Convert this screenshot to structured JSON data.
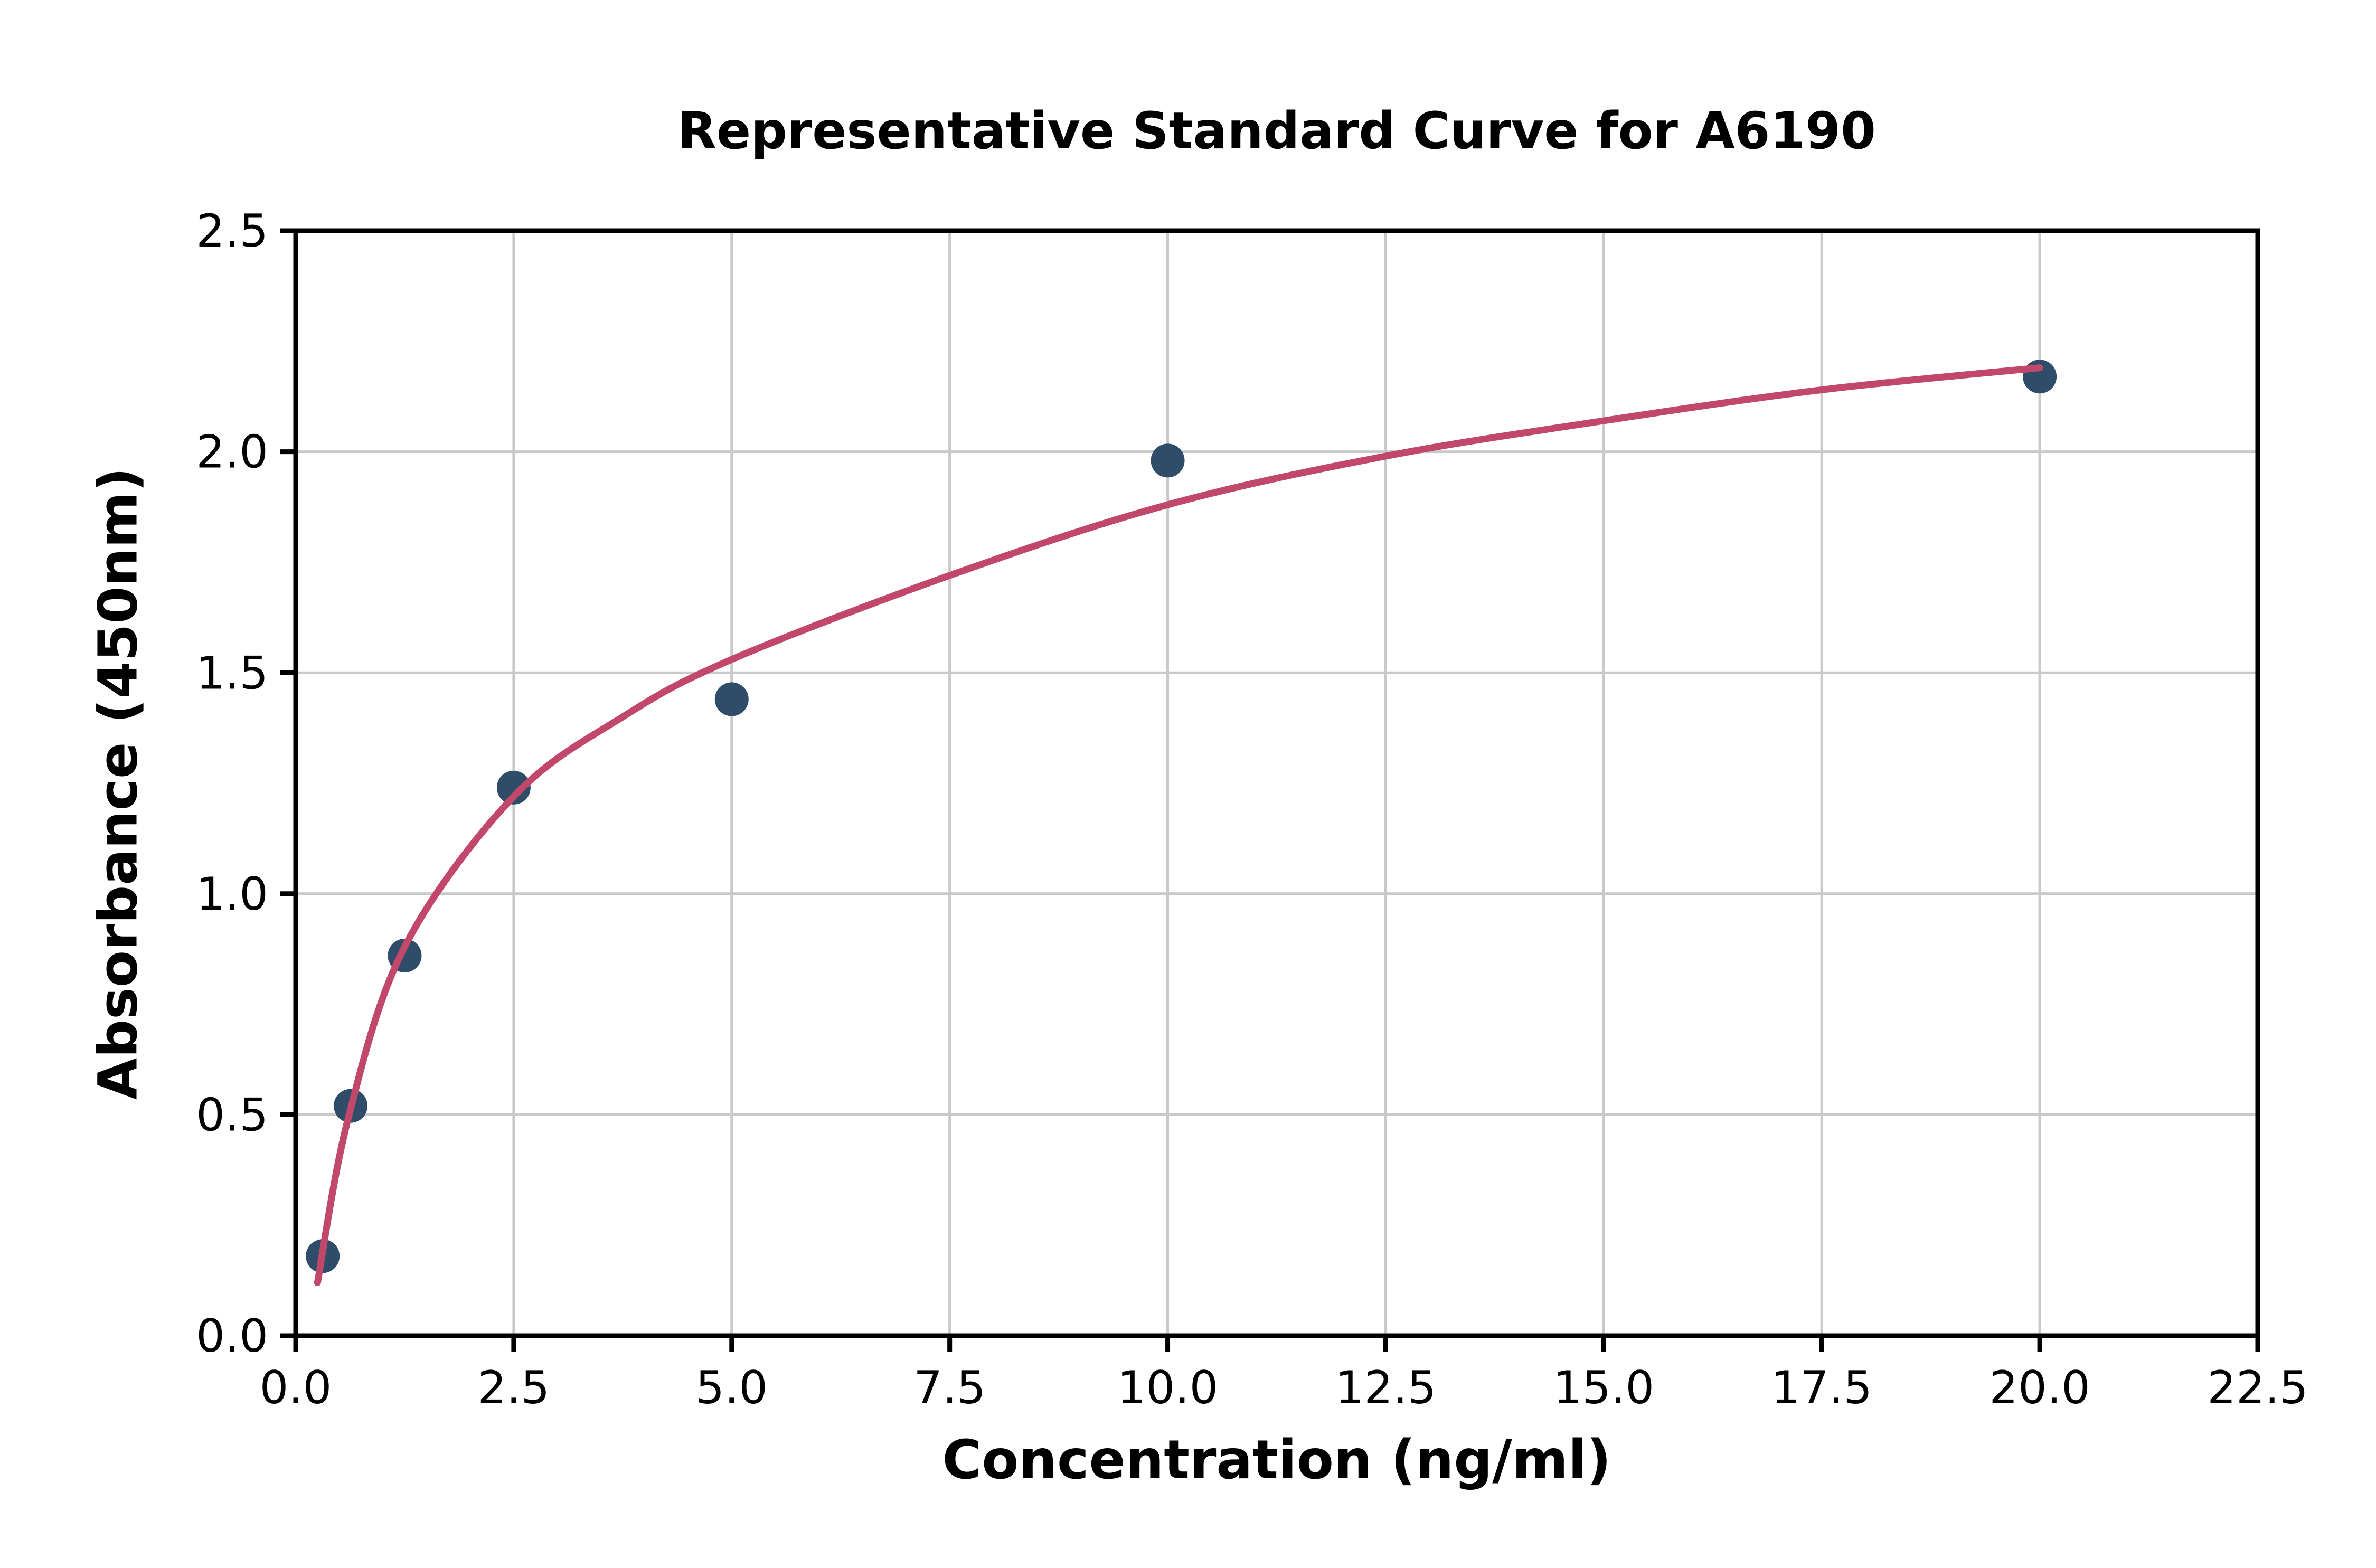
{
  "chart_data": {
    "type": "scatter",
    "title": "Representative Standard Curve for A6190",
    "xlabel": "Concentration (ng/ml)",
    "ylabel": "Absorbance (450nm)",
    "xlim": [
      0,
      22.5
    ],
    "ylim": [
      0,
      2.5
    ],
    "xticks": [
      0.0,
      2.5,
      5.0,
      7.5,
      10.0,
      12.5,
      15.0,
      17.5,
      20.0,
      22.5
    ],
    "xtick_labels": [
      "0.0",
      "2.5",
      "5.0",
      "7.5",
      "10.0",
      "12.5",
      "15.0",
      "17.5",
      "20.0",
      "22.5"
    ],
    "yticks": [
      0.0,
      0.5,
      1.0,
      1.5,
      2.0,
      2.5
    ],
    "ytick_labels": [
      "0.0",
      "0.5",
      "1.0",
      "1.5",
      "2.0",
      "2.5"
    ],
    "grid": true,
    "grid_color": "#c9c9c9",
    "spine_color": "#000000",
    "legend": "none",
    "series": [
      {
        "name": "standard-points",
        "type": "scatter",
        "color": "#2f4d68",
        "x": [
          0.31,
          0.63,
          1.25,
          2.5,
          5.0,
          10.0,
          20.0
        ],
        "y": [
          0.18,
          0.52,
          0.86,
          1.24,
          1.44,
          1.98,
          2.17
        ]
      },
      {
        "name": "fit-curve",
        "type": "line",
        "color": "#c2486b",
        "x": [
          0.25,
          0.6,
          1.25,
          2.5,
          3.75,
          5.0,
          7.5,
          10.0,
          12.5,
          15.0,
          17.5,
          20.0
        ],
        "y": [
          0.12,
          0.49,
          0.88,
          1.22,
          1.4,
          1.53,
          1.72,
          1.88,
          1.99,
          2.07,
          2.14,
          2.19
        ]
      }
    ]
  }
}
